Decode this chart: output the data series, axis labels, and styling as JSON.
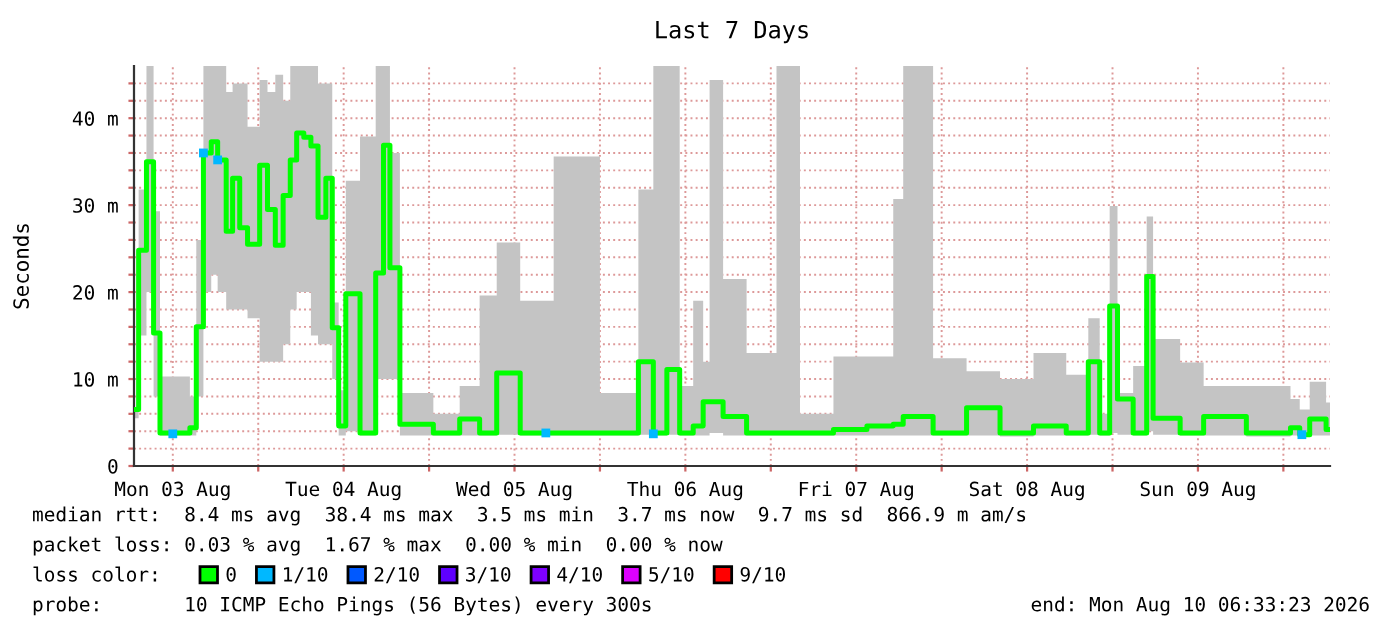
{
  "chart_data": {
    "type": "step",
    "title": "Last 7 Days",
    "ylabel": "Seconds",
    "legend_title": "loss color:",
    "legend": "bottom",
    "grid": true,
    "xlim": [
      "2026-08-03T06:33",
      "2026-08-10T06:33"
    ],
    "xticks": [
      {
        "value": "2026-08-03T12:00",
        "label": "Mon 03 Aug"
      },
      {
        "value": "2026-08-04T00:00",
        "label": null
      },
      {
        "value": "2026-08-04T12:00",
        "label": "Tue 04 Aug"
      },
      {
        "value": "2026-08-05T00:00",
        "label": null
      },
      {
        "value": "2026-08-05T12:00",
        "label": "Wed 05 Aug"
      },
      {
        "value": "2026-08-06T00:00",
        "label": null
      },
      {
        "value": "2026-08-06T12:00",
        "label": "Thu 06 Aug"
      },
      {
        "value": "2026-08-07T00:00",
        "label": null
      },
      {
        "value": "2026-08-07T12:00",
        "label": "Fri 07 Aug"
      },
      {
        "value": "2026-08-08T00:00",
        "label": null
      },
      {
        "value": "2026-08-08T12:00",
        "label": "Sat 08 Aug"
      },
      {
        "value": "2026-08-09T00:00",
        "label": null
      },
      {
        "value": "2026-08-09T12:00",
        "label": "Sun 09 Aug"
      },
      {
        "value": "2026-08-10T00:00",
        "label": null
      }
    ],
    "ylim": [
      0,
      46
    ],
    "yticks": [
      {
        "value": 0,
        "label": "0"
      },
      {
        "value": 2,
        "label": null
      },
      {
        "value": 4,
        "label": null
      },
      {
        "value": 6,
        "label": null
      },
      {
        "value": 8,
        "label": null
      },
      {
        "value": 10,
        "label": "10 m"
      },
      {
        "value": 12,
        "label": null
      },
      {
        "value": 14,
        "label": null
      },
      {
        "value": 16,
        "label": null
      },
      {
        "value": 18,
        "label": null
      },
      {
        "value": 20,
        "label": "20 m"
      },
      {
        "value": 22,
        "label": null
      },
      {
        "value": 24,
        "label": null
      },
      {
        "value": 26,
        "label": null
      },
      {
        "value": 28,
        "label": null
      },
      {
        "value": 30,
        "label": "30 m"
      },
      {
        "value": 32,
        "label": null
      },
      {
        "value": 34,
        "label": null
      },
      {
        "value": 36,
        "label": null
      },
      {
        "value": 38,
        "label": null
      },
      {
        "value": 40,
        "label": "40 m"
      },
      {
        "value": 42,
        "label": null
      },
      {
        "value": 44,
        "label": null
      }
    ],
    "series": [
      {
        "name": "0",
        "color": "#00ff00",
        "x": [
          "2026-08-03T06:36",
          "2026-08-03T07:12",
          "2026-08-03T08:18",
          "2026-08-03T09:18",
          "2026-08-03T10:12",
          "2026-08-03T12:30",
          "2026-08-03T14:24",
          "2026-08-03T15:18",
          "2026-08-03T16:18",
          "2026-08-03T17:24",
          "2026-08-03T18:18",
          "2026-08-03T19:30",
          "2026-08-03T20:24",
          "2026-08-03T21:24",
          "2026-08-03T22:30",
          "2026-08-04T00:12",
          "2026-08-04T01:18",
          "2026-08-04T02:24",
          "2026-08-04T03:30",
          "2026-08-04T04:30",
          "2026-08-04T05:24",
          "2026-08-04T06:24",
          "2026-08-04T07:24",
          "2026-08-04T08:24",
          "2026-08-04T09:30",
          "2026-08-04T10:24",
          "2026-08-04T11:18",
          "2026-08-04T12:18",
          "2026-08-04T14:18",
          "2026-08-04T16:30",
          "2026-08-04T17:36",
          "2026-08-04T18:30",
          "2026-08-04T19:54",
          "2026-08-05T00:36",
          "2026-08-05T04:18",
          "2026-08-05T07:06",
          "2026-08-05T09:30",
          "2026-08-05T12:48",
          "2026-08-05T17:30",
          "2026-08-06T00:00",
          "2026-08-06T05:24",
          "2026-08-06T07:30",
          "2026-08-06T09:24",
          "2026-08-06T11:12",
          "2026-08-06T13:06",
          "2026-08-06T14:30",
          "2026-08-06T15:24",
          "2026-08-06T17:18",
          "2026-08-06T20:36",
          "2026-08-07T00:48",
          "2026-08-07T04:06",
          "2026-08-07T08:48",
          "2026-08-07T13:30",
          "2026-08-07T17:12",
          "2026-08-07T18:36",
          "2026-08-07T22:48",
          "2026-08-08T03:30",
          "2026-08-08T08:12",
          "2026-08-08T12:54",
          "2026-08-08T17:30",
          "2026-08-08T20:36",
          "2026-08-08T22:12",
          "2026-08-08T23:36",
          "2026-08-09T00:42",
          "2026-08-09T02:54",
          "2026-08-09T04:48",
          "2026-08-09T05:42",
          "2026-08-09T09:30",
          "2026-08-09T12:48",
          "2026-08-09T18:48",
          "2026-08-10T01:00",
          "2026-08-10T02:18",
          "2026-08-10T03:42",
          "2026-08-10T06:00"
        ],
        "values": [
          6.5,
          24.8,
          35,
          15.3,
          3.8,
          3.8,
          4.4,
          16,
          36,
          37.3,
          35.2,
          27,
          33.1,
          27.4,
          25.5,
          34.6,
          29.5,
          25.4,
          31.1,
          35.2,
          38.3,
          37.8,
          36.8,
          28.6,
          33.1,
          15.9,
          4.6,
          19.8,
          3.8,
          22.2,
          36.9,
          22.8,
          4.8,
          3.8,
          5.4,
          3.8,
          10.7,
          3.8,
          3.8,
          3.8,
          12,
          3.8,
          11.1,
          3.8,
          4.6,
          7.4,
          7.4,
          5.7,
          3.8,
          3.8,
          3.8,
          4.2,
          4.6,
          4.8,
          5.7,
          3.8,
          6.7,
          3.8,
          4.6,
          3.8,
          12,
          3.8,
          18.4,
          7.7,
          3.8,
          21.8,
          5.5,
          3.8,
          5.7,
          3.8,
          4.4,
          3.6,
          5.4,
          4.2
        ],
        "lower": [
          5.5,
          15,
          20,
          8,
          3.5,
          3.5,
          3.5,
          8,
          20,
          22,
          20,
          18,
          18,
          18,
          17,
          12,
          12,
          12,
          14,
          18,
          20,
          20,
          15,
          14,
          14,
          10,
          3.5,
          4,
          3.5,
          10,
          10,
          10,
          3.5,
          3.5,
          3.5,
          3.5,
          3.6,
          3.5,
          3.5,
          3.5,
          3.6,
          3.5,
          3.6,
          3.5,
          3.5,
          3.5,
          3.8,
          3.5,
          3.5,
          3.5,
          3.5,
          3.5,
          3.5,
          3.5,
          3.5,
          3.5,
          3.5,
          3.4,
          3.5,
          3.5,
          3.6,
          3.5,
          3.8,
          3.6,
          3.5,
          4,
          3.6,
          3.5,
          3.5,
          3.4,
          3.5,
          3.4,
          3.5,
          3.5
        ],
        "upper": [
          6.5,
          31.8,
          46,
          29.3,
          10.3,
          10.3,
          8,
          26,
          46,
          46,
          46,
          43,
          44,
          44,
          39,
          44.4,
          43,
          45,
          42,
          46,
          46,
          46,
          46,
          44,
          44,
          18.8,
          8.7,
          32.8,
          37.9,
          46,
          46,
          36,
          8.4,
          6,
          9.2,
          19.6,
          25.7,
          19,
          35.6,
          8.4,
          31.8,
          46,
          46,
          9.2,
          19,
          12,
          44.4,
          21.5,
          13,
          46,
          6,
          12.6,
          12.6,
          30.7,
          46,
          12.4,
          10.9,
          10,
          13,
          10.5,
          17,
          6,
          29.9,
          8.4,
          11.5,
          28.7,
          14.6,
          11.9,
          9.2,
          9.2,
          7.7,
          6.5,
          9.7,
          7.3
        ]
      },
      {
        "name": "1/10",
        "type": "scatter",
        "color": "#00b8ff",
        "x": [
          "2026-08-03T12:00",
          "2026-08-03T16:18",
          "2026-08-03T18:18",
          "2026-08-05T16:24",
          "2026-08-06T07:30",
          "2026-08-10T02:36"
        ],
        "values": [
          3.7,
          36,
          35.2,
          3.8,
          3.7,
          3.6
        ]
      },
      {
        "name": "2/10",
        "type": "scatter",
        "color": "#0059ff"
      },
      {
        "name": "3/10",
        "type": "scatter",
        "color": "#5e00ff"
      },
      {
        "name": "4/10",
        "type": "scatter",
        "color": "#7e00ff"
      },
      {
        "name": "5/10",
        "type": "scatter",
        "color": "#dd00ff"
      },
      {
        "name": "9/10",
        "type": "scatter",
        "color": "#ff0000"
      }
    ],
    "annotations": [
      "median rtt:  8.4 ms avg  38.4 ms max  3.5 ms min  3.7 ms now  9.7 ms sd  866.9 m am/s",
      "packet loss: 0.03 % avg  1.67 % max  0.00 % min  0.00 % now",
      "probe:       10 ICMP Echo Pings (56 Bytes) every 300s",
      "end: Mon Aug 10 06:33:23 2026"
    ]
  }
}
